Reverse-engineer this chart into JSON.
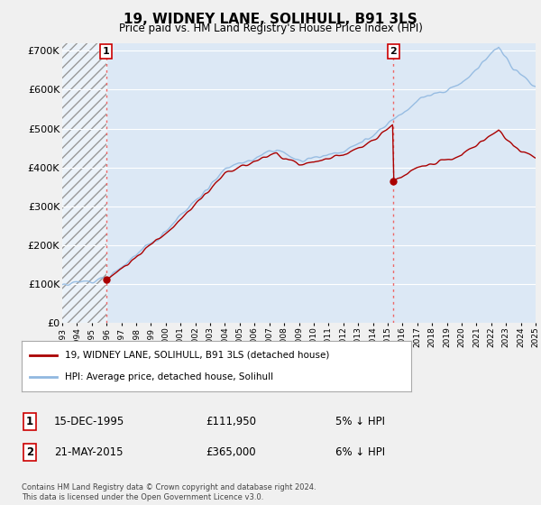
{
  "title": "19, WIDNEY LANE, SOLIHULL, B91 3LS",
  "subtitle": "Price paid vs. HM Land Registry's House Price Index (HPI)",
  "ylim": [
    0,
    720000
  ],
  "yticks": [
    0,
    100000,
    200000,
    300000,
    400000,
    500000,
    600000,
    700000
  ],
  "ytick_labels": [
    "£0",
    "£100K",
    "£200K",
    "£300K",
    "£400K",
    "£500K",
    "£600K",
    "£700K"
  ],
  "transaction1_date": 1995.958,
  "transaction1_price": 111950,
  "transaction2_date": 2015.384,
  "transaction2_price": 365000,
  "hpi_color": "#90b8e0",
  "price_color": "#aa0000",
  "vline_color": "#ee6666",
  "legend_label_price": "19, WIDNEY LANE, SOLIHULL, B91 3LS (detached house)",
  "legend_label_hpi": "HPI: Average price, detached house, Solihull",
  "note1_label": "1",
  "note1_date": "15-DEC-1995",
  "note1_price": "£111,950",
  "note1_hpi": "5% ↓ HPI",
  "note2_label": "2",
  "note2_date": "21-MAY-2015",
  "note2_price": "£365,000",
  "note2_hpi": "6% ↓ HPI",
  "footer": "Contains HM Land Registry data © Crown copyright and database right 2024.\nThis data is licensed under the Open Government Licence v3.0.",
  "background_color": "#f0f0f0",
  "plot_bg_color": "#dce8f5",
  "xmin": 1993,
  "xmax": 2025
}
